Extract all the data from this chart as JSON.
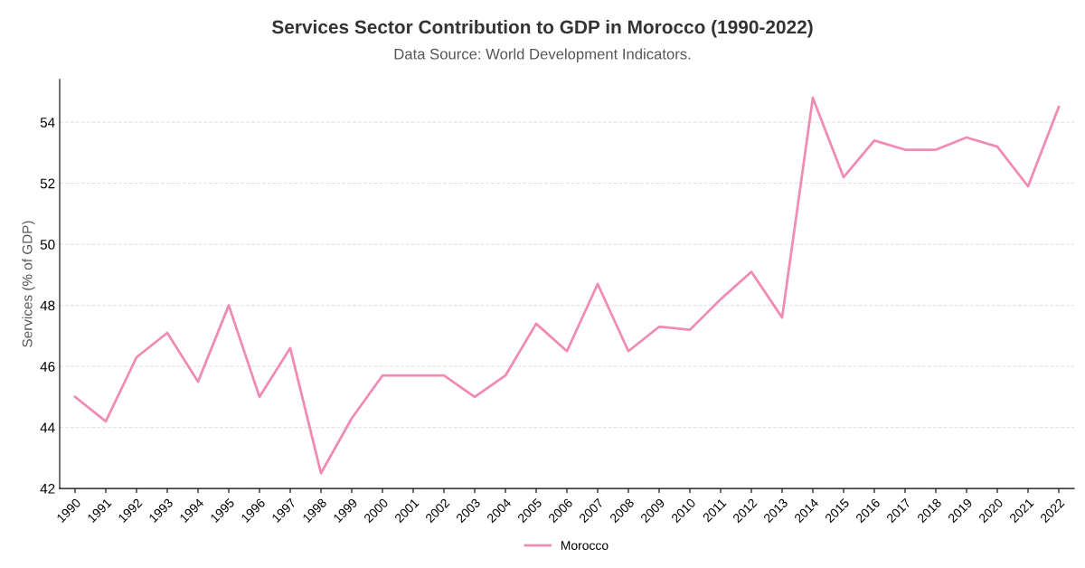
{
  "chart_data": {
    "type": "line",
    "title": "Services Sector Contribution to GDP in Morocco (1990-2022)",
    "subtitle": "Data Source: World Development Indicators.",
    "ylabel": "Services (% of GDP)",
    "categories": [
      "1990",
      "1991",
      "1992",
      "1993",
      "1994",
      "1995",
      "1996",
      "1997",
      "1998",
      "1999",
      "2000",
      "2001",
      "2002",
      "2003",
      "2004",
      "2005",
      "2006",
      "2007",
      "2008",
      "2009",
      "2010",
      "2011",
      "2012",
      "2013",
      "2014",
      "2015",
      "2016",
      "2017",
      "2018",
      "2019",
      "2020",
      "2021",
      "2022"
    ],
    "series": [
      {
        "name": "Morocco",
        "color": "#f08cb4",
        "values": [
          45.0,
          44.2,
          46.3,
          47.1,
          45.5,
          48.0,
          45.0,
          46.6,
          42.5,
          44.3,
          45.7,
          45.7,
          45.7,
          45.0,
          45.7,
          47.4,
          46.5,
          48.7,
          46.5,
          47.3,
          47.2,
          48.2,
          49.1,
          47.6,
          54.8,
          52.2,
          53.4,
          53.1,
          53.1,
          53.5,
          53.2,
          51.9,
          54.5
        ]
      }
    ],
    "ylim": [
      42,
      55.4
    ],
    "yticks": [
      42,
      44,
      46,
      48,
      50,
      52,
      54
    ],
    "grid": "y",
    "legend": "bottom",
    "marker": "none",
    "line_style": "solid"
  }
}
